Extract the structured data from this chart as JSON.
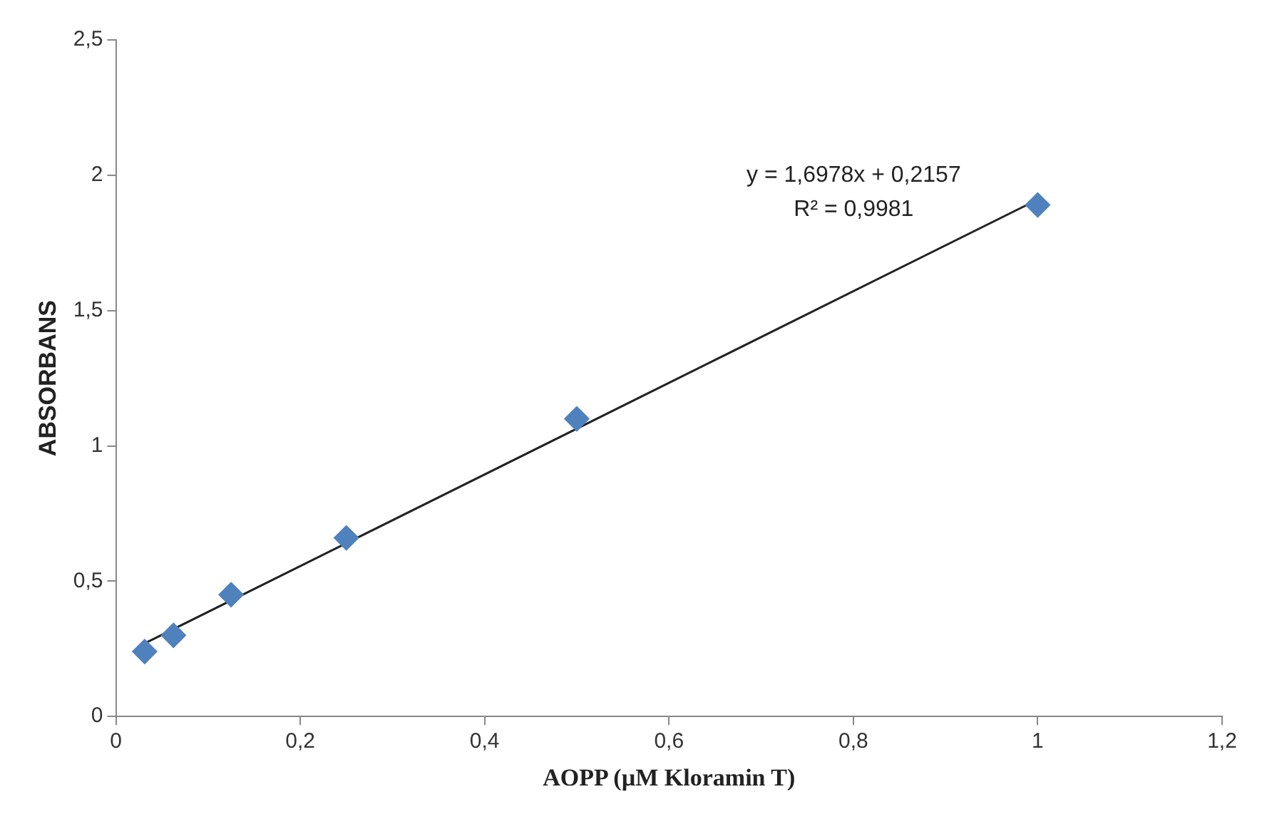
{
  "chart_data": {
    "type": "scatter",
    "xlabel": "AOPP (µM Kloramin T)",
    "ylabel": "ABSORBANS",
    "series": [
      {
        "type": "scatter",
        "color": "#4f81bd",
        "x": [
          0.03125,
          0.0625,
          0.125,
          0.25,
          0.5,
          1
        ],
        "values": [
          0.24,
          0.3,
          0.45,
          0.66,
          1.1,
          1.89
        ],
        "marker": "diamond"
      },
      {
        "type": "line",
        "color": "#222222",
        "x": [
          0.03125,
          1
        ],
        "values": [
          0.27,
          1.91
        ],
        "marker": "none"
      }
    ],
    "annotations": [
      "y = 1,6978x + 0,2157",
      "R² = 0,9981"
    ],
    "xlim": [
      0,
      1.2
    ],
    "xticks": [
      0,
      {
        "value": 0.2,
        "label": "0,2"
      },
      {
        "value": 0.4,
        "label": "0,4"
      },
      {
        "value": 0.6,
        "label": "0,6"
      },
      {
        "value": 0.8,
        "label": "0,8"
      },
      1,
      {
        "value": 1.2,
        "label": "1,2"
      }
    ],
    "ylim": [
      0,
      2.5
    ],
    "yticks": [
      0,
      {
        "value": 0.5,
        "label": "0,5"
      },
      1,
      {
        "value": 1.5,
        "label": "1,5"
      },
      2,
      {
        "value": 2.5,
        "label": "2,5"
      }
    ],
    "grid": false,
    "legend": false
  }
}
